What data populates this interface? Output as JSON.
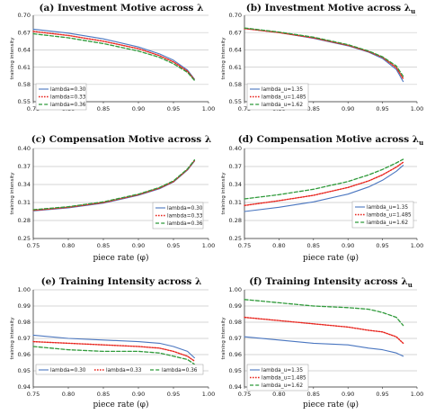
{
  "colors": {
    "blue": "#4a76c0",
    "red": "#e8261f",
    "green": "#2f9a3a",
    "grid": "#c8c8c8",
    "axis": "#333333"
  },
  "chart_data": [
    {
      "type": "line",
      "title": "(a) Investment Motive across λ",
      "xlabel": "",
      "ylabel": "training intensity",
      "xlim": [
        0.75,
        1.0
      ],
      "ylim": [
        0.55,
        0.7
      ],
      "xticks": [
        "0.75",
        "0.80",
        "0.85",
        "0.90",
        "0.95",
        "1.00"
      ],
      "yticks": [
        "0.55",
        "0.58",
        "0.61",
        "0.64",
        "0.67",
        "0.70"
      ],
      "legend_position": "bottom-left",
      "x": [
        0.75,
        0.8,
        0.85,
        0.9,
        0.93,
        0.95,
        0.97,
        0.98
      ],
      "series": [
        {
          "name": "lambda=0.30",
          "color": "blue",
          "dash": "solid",
          "values": [
            0.676,
            0.669,
            0.659,
            0.645,
            0.633,
            0.622,
            0.605,
            0.589
          ]
        },
        {
          "name": "lambda=0.33",
          "color": "red",
          "dash": "dotted",
          "values": [
            0.672,
            0.665,
            0.655,
            0.642,
            0.63,
            0.619,
            0.603,
            0.588
          ]
        },
        {
          "name": "lambda=0.36",
          "color": "green",
          "dash": "dashed",
          "values": [
            0.668,
            0.661,
            0.651,
            0.638,
            0.627,
            0.616,
            0.601,
            0.587
          ]
        }
      ]
    },
    {
      "type": "line",
      "title": "(b) Investment Motive across λ",
      "title_subscript": "u",
      "xlabel": "",
      "ylabel": "training intensity",
      "xlim": [
        0.75,
        1.0
      ],
      "ylim": [
        0.55,
        0.7
      ],
      "xticks": [
        "0.75",
        "0.80",
        "0.85",
        "0.90",
        "0.95",
        "1.00"
      ],
      "yticks": [
        "0.55",
        "0.58",
        "0.61",
        "0.64",
        "0.67",
        "0.70"
      ],
      "legend_position": "bottom-left",
      "x": [
        0.75,
        0.8,
        0.85,
        0.9,
        0.93,
        0.95,
        0.97,
        0.98
      ],
      "series": [
        {
          "name": "lambda_u=1.35",
          "color": "blue",
          "dash": "solid",
          "values": [
            0.677,
            0.67,
            0.66,
            0.647,
            0.636,
            0.625,
            0.606,
            0.585
          ]
        },
        {
          "name": "lambda_u=1.485",
          "color": "red",
          "dash": "dotted",
          "values": [
            0.677,
            0.67,
            0.661,
            0.648,
            0.637,
            0.627,
            0.609,
            0.59
          ]
        },
        {
          "name": "lambda_u=1.62",
          "color": "green",
          "dash": "dashed",
          "values": [
            0.678,
            0.671,
            0.662,
            0.649,
            0.638,
            0.628,
            0.612,
            0.594
          ]
        }
      ]
    },
    {
      "type": "line",
      "title": "(c) Compensation Motive across λ",
      "xlabel": "piece rate (φ)",
      "ylabel": "training intensity",
      "xlim": [
        0.75,
        1.0
      ],
      "ylim": [
        0.25,
        0.4
      ],
      "xticks": [
        "0.75",
        "0.80",
        "0.85",
        "0.90",
        "0.95",
        "1.00"
      ],
      "yticks": [
        "0.25",
        "0.28",
        "0.31",
        "0.34",
        "0.37",
        "0.40"
      ],
      "legend_position": "bottom-right",
      "x": [
        0.75,
        0.8,
        0.85,
        0.9,
        0.93,
        0.95,
        0.97,
        0.98
      ],
      "series": [
        {
          "name": "lambda=0.30",
          "color": "blue",
          "dash": "solid",
          "values": [
            0.296,
            0.301,
            0.309,
            0.322,
            0.333,
            0.344,
            0.364,
            0.379
          ]
        },
        {
          "name": "lambda=0.33",
          "color": "red",
          "dash": "dotted",
          "values": [
            0.297,
            0.302,
            0.31,
            0.323,
            0.334,
            0.345,
            0.365,
            0.38
          ]
        },
        {
          "name": "lambda=0.36",
          "color": "green",
          "dash": "dashed",
          "values": [
            0.298,
            0.303,
            0.311,
            0.324,
            0.335,
            0.346,
            0.366,
            0.381
          ]
        }
      ]
    },
    {
      "type": "line",
      "title": "(d) Compensation Motive across λ",
      "title_subscript": "u",
      "xlabel": "piece rate (φ)",
      "ylabel": "training intensity",
      "xlim": [
        0.75,
        1.0
      ],
      "ylim": [
        0.25,
        0.4
      ],
      "xticks": [
        "0.75",
        "0.80",
        "0.85",
        "0.90",
        "0.95",
        "1.00"
      ],
      "yticks": [
        "0.25",
        "0.28",
        "0.31",
        "0.34",
        "0.37",
        "0.40"
      ],
      "legend_position": "bottom-right",
      "x": [
        0.75,
        0.8,
        0.85,
        0.9,
        0.93,
        0.95,
        0.97,
        0.98
      ],
      "series": [
        {
          "name": "lambda_u=1.35",
          "color": "blue",
          "dash": "solid",
          "values": [
            0.295,
            0.302,
            0.311,
            0.324,
            0.336,
            0.347,
            0.362,
            0.372
          ]
        },
        {
          "name": "lambda_u=1.485",
          "color": "red",
          "dash": "dotted",
          "values": [
            0.305,
            0.313,
            0.322,
            0.335,
            0.346,
            0.356,
            0.369,
            0.377
          ]
        },
        {
          "name": "lambda_u=1.62",
          "color": "green",
          "dash": "dashed",
          "values": [
            0.316,
            0.323,
            0.332,
            0.345,
            0.356,
            0.365,
            0.376,
            0.382
          ]
        }
      ]
    },
    {
      "type": "line",
      "title": "(e) Training Intensity across λ",
      "xlabel": "piece rate (φ)",
      "ylabel": "training intensity",
      "xlim": [
        0.75,
        1.0
      ],
      "ylim": [
        0.94,
        1.0
      ],
      "xticks": [
        "0.75",
        "0.80",
        "0.85",
        "0.90",
        "0.95",
        "1.00"
      ],
      "yticks": [
        "0.94",
        "0.95",
        "0.96",
        "0.97",
        "0.98",
        "0.99",
        "1.00"
      ],
      "legend_position": "bottom",
      "x": [
        0.75,
        0.8,
        0.85,
        0.9,
        0.93,
        0.95,
        0.97,
        0.98
      ],
      "series": [
        {
          "name": "lambda=0.30",
          "color": "blue",
          "dash": "solid",
          "values": [
            0.972,
            0.97,
            0.969,
            0.968,
            0.967,
            0.965,
            0.962,
            0.958
          ]
        },
        {
          "name": "lambda=0.33",
          "color": "red",
          "dash": "dotted",
          "values": [
            0.968,
            0.967,
            0.966,
            0.965,
            0.964,
            0.962,
            0.959,
            0.956
          ]
        },
        {
          "name": "lambda=0.36",
          "color": "green",
          "dash": "dashed",
          "values": [
            0.965,
            0.963,
            0.962,
            0.962,
            0.961,
            0.959,
            0.957,
            0.954
          ]
        }
      ]
    },
    {
      "type": "line",
      "title": "(f) Training Intensity across λ",
      "title_subscript": "u",
      "xlabel": "piece rate (φ)",
      "ylabel": "training intensity",
      "xlim": [
        0.75,
        1.0
      ],
      "ylim": [
        0.94,
        1.0
      ],
      "xticks": [
        "0.75",
        "0.80",
        "0.85",
        "0.90",
        "0.95",
        "1.00"
      ],
      "yticks": [
        "0.94",
        "0.95",
        "0.96",
        "0.97",
        "0.98",
        "0.99",
        "1.00"
      ],
      "legend_position": "bottom-left",
      "x": [
        0.75,
        0.8,
        0.85,
        0.9,
        0.93,
        0.95,
        0.97,
        0.98
      ],
      "series": [
        {
          "name": "lambda_u=1.35",
          "color": "blue",
          "dash": "solid",
          "values": [
            0.971,
            0.969,
            0.967,
            0.966,
            0.964,
            0.963,
            0.961,
            0.959
          ]
        },
        {
          "name": "lambda_u=1.485",
          "color": "red",
          "dash": "dotted",
          "values": [
            0.983,
            0.981,
            0.979,
            0.977,
            0.975,
            0.974,
            0.971,
            0.967
          ]
        },
        {
          "name": "lambda_u=1.62",
          "color": "green",
          "dash": "dashed",
          "values": [
            0.994,
            0.992,
            0.99,
            0.989,
            0.988,
            0.986,
            0.983,
            0.978
          ]
        }
      ]
    }
  ]
}
